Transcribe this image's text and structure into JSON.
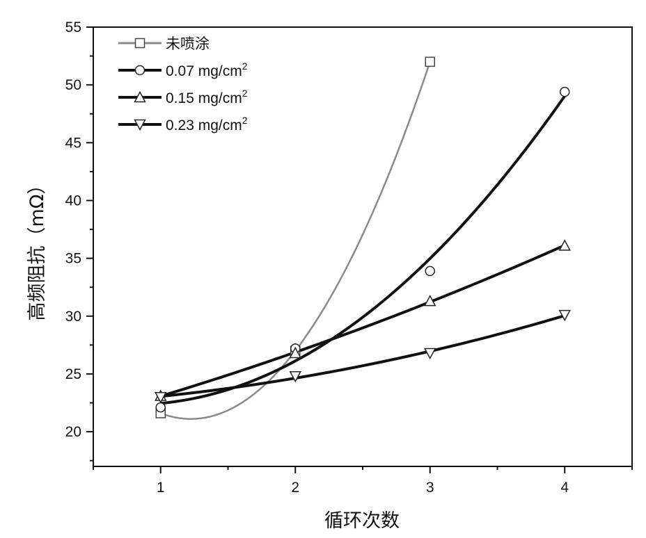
{
  "chart_data": {
    "type": "line",
    "xlabel": "循环次数",
    "ylabel": "高频阻抗（mΩ）",
    "xlim": [
      0.5,
      4.5
    ],
    "ylim": [
      17,
      55
    ],
    "x_ticks": [
      1,
      2,
      3,
      4
    ],
    "y_ticks": [
      20,
      25,
      30,
      35,
      40,
      45,
      50,
      55
    ],
    "grid": false,
    "legend_position": "top-left",
    "series": [
      {
        "name": "未喷涂",
        "marker": "square",
        "color": "#8a8a8a",
        "x": [
          1,
          2,
          3
        ],
        "y": [
          21.6,
          27.0,
          52.0
        ]
      },
      {
        "name": "0.07 mg/cm",
        "superscript": "2",
        "marker": "circle",
        "color": "#111111",
        "x": [
          1,
          2,
          3,
          4
        ],
        "y": [
          22.1,
          27.2,
          33.9,
          49.4
        ]
      },
      {
        "name": "0.15 mg/cm",
        "superscript": "2",
        "marker": "triangle-up",
        "color": "#111111",
        "x": [
          1,
          2,
          3,
          4
        ],
        "y": [
          23.1,
          26.8,
          31.3,
          36.1
        ]
      },
      {
        "name": "0.23 mg/cm",
        "superscript": "2",
        "marker": "triangle-down",
        "color": "#111111",
        "x": [
          1,
          2,
          3,
          4
        ],
        "y": [
          23.0,
          24.8,
          26.8,
          30.1
        ]
      }
    ]
  }
}
